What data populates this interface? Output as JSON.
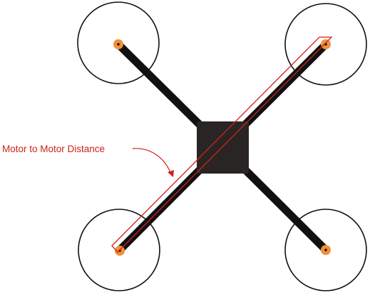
{
  "annotation": {
    "label": "Motor to Motor Distance"
  },
  "colors": {
    "frame": "#111111",
    "body": "#2a2525",
    "motor": "#f0913a",
    "motor_center": "#111111",
    "prop_circle": "#111111",
    "annotation": "#d0201c",
    "background": "#ffffff"
  },
  "motors": [
    {
      "name": "top-left"
    },
    {
      "name": "top-right"
    },
    {
      "name": "bottom-left"
    },
    {
      "name": "bottom-right"
    }
  ]
}
